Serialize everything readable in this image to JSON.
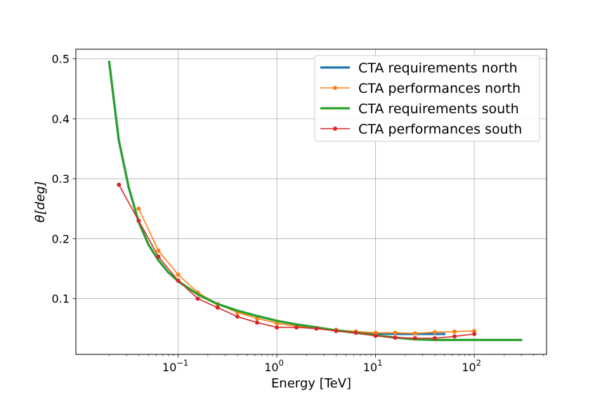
{
  "chart_data": {
    "type": "line",
    "xlabel": "Energy [TeV]",
    "ylabel": "θ[deg]",
    "xscale": "log",
    "xlim": [
      0.0092,
      540
    ],
    "ylim": [
      0.007,
      0.516
    ],
    "grid": true,
    "legend_position": "top-right",
    "x_ticks": [
      {
        "value": 0.1,
        "base": "10",
        "exp": "−1"
      },
      {
        "value": 1,
        "base": "10",
        "exp": "0"
      },
      {
        "value": 10,
        "base": "10",
        "exp": "1"
      },
      {
        "value": 100,
        "base": "10",
        "exp": "2"
      }
    ],
    "y_ticks": [
      {
        "value": 0.1,
        "label": "0.1"
      },
      {
        "value": 0.2,
        "label": "0.2"
      },
      {
        "value": 0.3,
        "label": "0.3"
      },
      {
        "value": 0.4,
        "label": "0.4"
      },
      {
        "value": 0.5,
        "label": "0.5"
      }
    ],
    "series": [
      {
        "name": "CTA requirements north",
        "color": "#1f77b4",
        "style": "thick",
        "markers": false,
        "x": [
          0.02,
          0.025,
          0.0316,
          0.0398,
          0.0501,
          0.0631,
          0.0794,
          0.1,
          0.158,
          0.251,
          0.398,
          0.631,
          1.0,
          1.58,
          2.51,
          3.98,
          6.31,
          10,
          15.8,
          25.1,
          39.8,
          50
        ],
        "y": [
          0.495,
          0.365,
          0.285,
          0.228,
          0.19,
          0.164,
          0.144,
          0.129,
          0.107,
          0.091,
          0.08,
          0.071,
          0.063,
          0.057,
          0.052,
          0.047,
          0.044,
          0.042,
          0.041,
          0.041,
          0.041,
          0.041
        ]
      },
      {
        "name": "CTA performances north",
        "color": "#ff7f0e",
        "style": "thin",
        "markers": true,
        "x": [
          0.0398,
          0.0631,
          0.1,
          0.158,
          0.251,
          0.398,
          0.631,
          1.0,
          1.58,
          2.51,
          3.98,
          6.31,
          10,
          15.8,
          25.1,
          39.8,
          63.1,
          100
        ],
        "y": [
          0.25,
          0.18,
          0.14,
          0.11,
          0.091,
          0.077,
          0.067,
          0.059,
          0.054,
          0.051,
          0.048,
          0.045,
          0.043,
          0.043,
          0.042,
          0.044,
          0.045,
          0.046
        ]
      },
      {
        "name": "CTA requirements south",
        "color": "#2ca02c",
        "style": "thick",
        "markers": false,
        "x": [
          0.02,
          0.025,
          0.0316,
          0.0398,
          0.0501,
          0.0631,
          0.0794,
          0.1,
          0.158,
          0.251,
          0.398,
          0.631,
          1.0,
          1.58,
          2.51,
          3.98,
          6.31,
          10,
          15.8,
          25.1,
          39.8,
          63.1,
          100,
          158,
          300
        ],
        "y": [
          0.495,
          0.365,
          0.285,
          0.228,
          0.19,
          0.164,
          0.144,
          0.129,
          0.107,
          0.091,
          0.08,
          0.071,
          0.063,
          0.057,
          0.052,
          0.047,
          0.043,
          0.039,
          0.035,
          0.032,
          0.031,
          0.031,
          0.031,
          0.031,
          0.031
        ]
      },
      {
        "name": "CTA performances south",
        "color": "#d62728",
        "style": "thin",
        "markers": true,
        "x": [
          0.0251,
          0.0398,
          0.0631,
          0.1,
          0.158,
          0.251,
          0.398,
          0.631,
          1.0,
          1.58,
          2.51,
          3.98,
          6.31,
          10,
          15.8,
          25.1,
          39.8,
          63.1,
          100
        ],
        "y": [
          0.29,
          0.23,
          0.17,
          0.13,
          0.1,
          0.085,
          0.07,
          0.06,
          0.052,
          0.052,
          0.05,
          0.046,
          0.043,
          0.038,
          0.035,
          0.034,
          0.034,
          0.037,
          0.041
        ]
      }
    ]
  }
}
